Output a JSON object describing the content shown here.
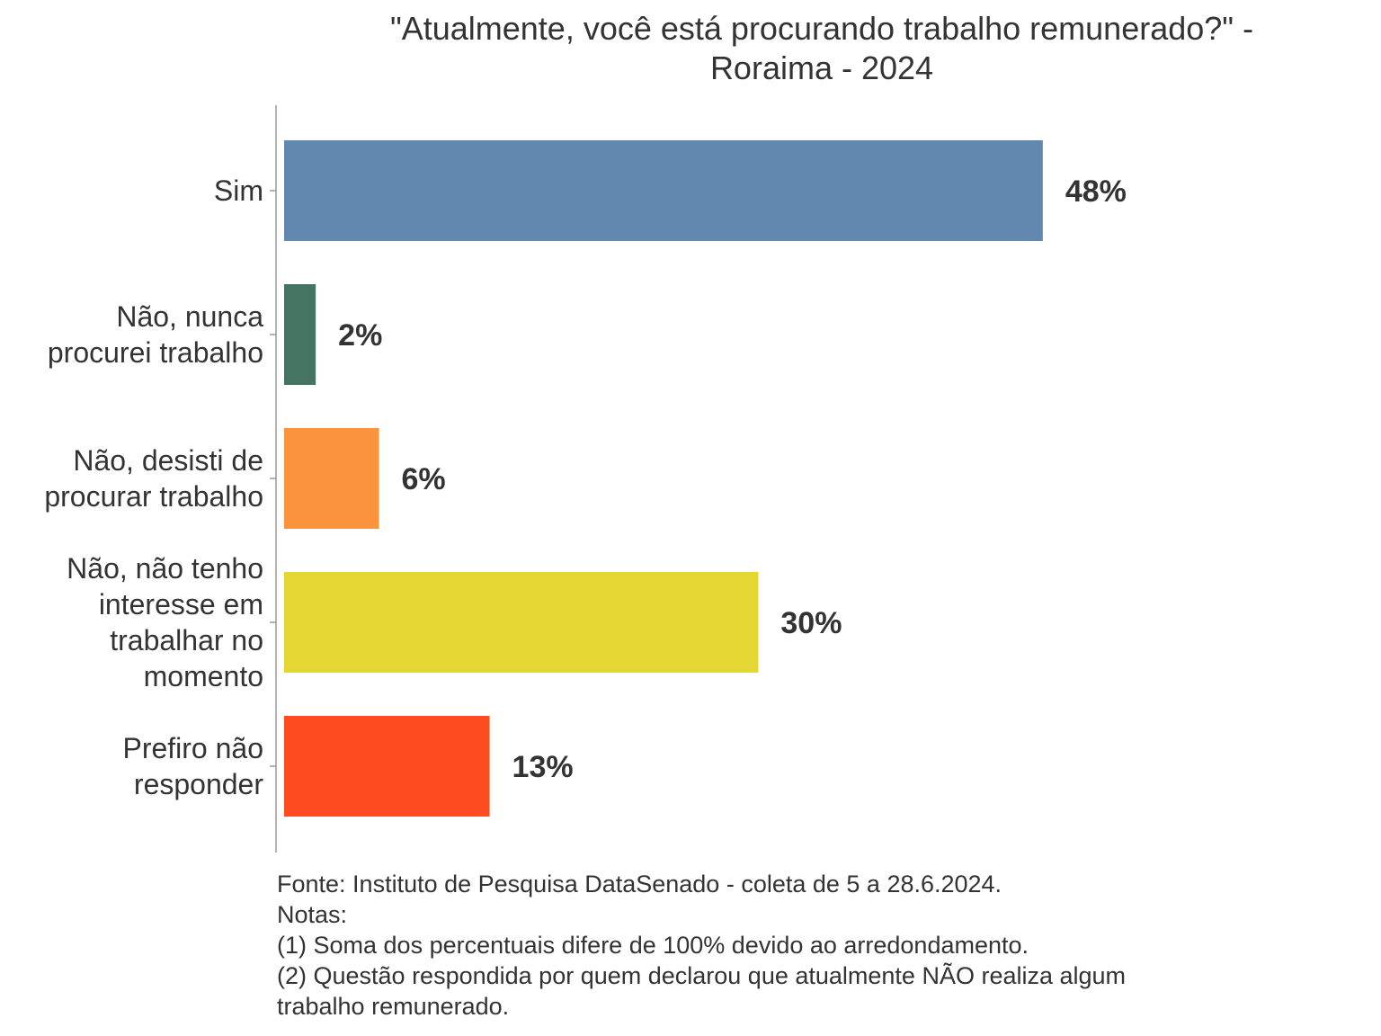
{
  "chart_data": {
    "type": "bar",
    "orientation": "horizontal",
    "title": "\"Atualmente, você está procurando trabalho remunerado?\" - Roraima - 2024",
    "title_lines": [
      "\"Atualmente, você está procurando trabalho remunerado?\" -",
      "Roraima - 2024"
    ],
    "xlabel": "",
    "ylabel": "",
    "xlim": [
      0,
      54
    ],
    "grid": false,
    "legend": "none",
    "categories": [
      "Sim",
      "Não, nunca procurei trabalho",
      "Não, desisti de procurar trabalho",
      "Não, não tenho interesse em trabalhar no momento",
      "Prefiro não responder"
    ],
    "category_lines": [
      [
        "Sim"
      ],
      [
        "Não, nunca",
        "procurei trabalho"
      ],
      [
        "Não, desisti de",
        "procurar trabalho"
      ],
      [
        "Não, não tenho",
        "interesse em",
        "trabalhar no",
        "momento"
      ],
      [
        "Prefiro não",
        "responder"
      ]
    ],
    "values": [
      48,
      2,
      6,
      30,
      13
    ],
    "value_labels": [
      "48%",
      "2%",
      "6%",
      "30%",
      "13%"
    ],
    "colors": [
      "#6388B0",
      "#467462",
      "#FB923C",
      "#E5D733",
      "#FF4B20"
    ]
  },
  "caption": {
    "lines": [
      "Fonte: Instituto de Pesquisa DataSenado - coleta de 5 a 28.6.2024.",
      "Notas:",
      "(1) Soma dos percentuais difere de 100% devido ao arredondamento.",
      "(2) Questão respondida por quem declarou que atualmente NÃO realiza algum",
      "trabalho remunerado."
    ]
  },
  "colors": {
    "axis": "#999999",
    "text": "#333333"
  }
}
